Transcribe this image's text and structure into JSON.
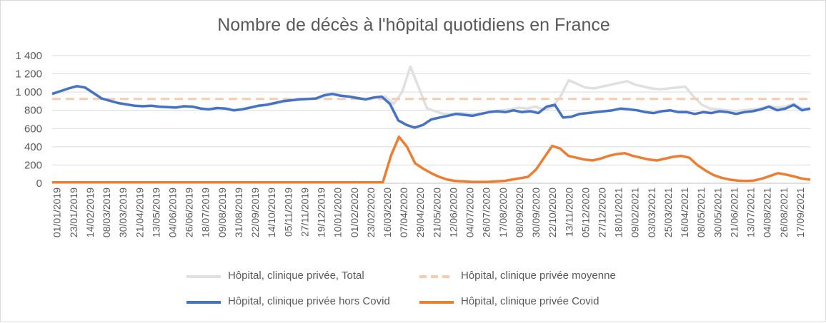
{
  "chart_data": {
    "type": "line",
    "title": "Nombre de décès à l'hôpital quotidiens en France",
    "xlabel": "",
    "ylabel": "",
    "ylim": [
      0,
      1400
    ],
    "y_ticks": [
      "0",
      "200",
      "400",
      "600",
      "800",
      "1 000",
      "1 200",
      "1 400"
    ],
    "x_tick_labels": [
      "01/01/2019",
      "23/01/2019",
      "14/02/2019",
      "08/03/2019",
      "30/03/2019",
      "21/04/2019",
      "13/05/2019",
      "04/06/2019",
      "26/06/2019",
      "18/07/2019",
      "09/08/2019",
      "31/08/2019",
      "22/09/2019",
      "14/10/2019",
      "05/11/2019",
      "27/11/2019",
      "19/12/2019",
      "10/01/2020",
      "01/02/2020",
      "23/02/2020",
      "16/03/2020",
      "07/04/2020",
      "29/04/2020",
      "21/05/2020",
      "12/06/2020",
      "04/07/2020",
      "26/07/2020",
      "17/08/2020",
      "08/09/2020",
      "30/09/2020",
      "22/10/2020",
      "13/11/2020",
      "05/12/2020",
      "27/12/2020",
      "18/01/2021",
      "09/02/2021",
      "03/03/2021",
      "25/03/2021",
      "16/04/2021",
      "08/05/2021",
      "30/05/2021",
      "21/06/2021",
      "13/07/2021",
      "04/08/2021",
      "26/08/2021",
      "17/09/2021"
    ],
    "grid": "horizontal",
    "legend_position": "bottom",
    "series": [
      {
        "name": "Hôpital, clinique privée, Total",
        "color": "#e0e0e0",
        "style": "solid",
        "values": [
          980,
          1010,
          1040,
          1065,
          1050,
          990,
          930,
          905,
          880,
          865,
          850,
          845,
          850,
          840,
          835,
          830,
          845,
          840,
          820,
          810,
          825,
          820,
          800,
          810,
          830,
          850,
          860,
          880,
          900,
          910,
          920,
          925,
          930,
          965,
          980,
          960,
          950,
          935,
          920,
          940,
          950,
          870,
          1000,
          1280,
          1050,
          820,
          790,
          760,
          760,
          770,
          760,
          760,
          770,
          790,
          800,
          810,
          830,
          820,
          840,
          810,
          830,
          950,
          1130,
          1090,
          1050,
          1040,
          1060,
          1080,
          1100,
          1120,
          1080,
          1060,
          1040,
          1030,
          1040,
          1050,
          1060,
          950,
          860,
          820,
          810,
          800,
          790,
          800,
          810,
          820,
          850,
          830,
          840,
          870,
          820,
          820
        ]
      },
      {
        "name": "Hôpital, clinique privée moyenne",
        "color": "#f8cbad",
        "style": "dashed",
        "values": [
          925,
          925
        ]
      },
      {
        "name": "Hôpital, clinique privée hors Covid",
        "color": "#4472c4",
        "style": "solid",
        "values": [
          980,
          1010,
          1040,
          1065,
          1050,
          990,
          930,
          905,
          880,
          865,
          850,
          845,
          850,
          840,
          835,
          830,
          845,
          840,
          820,
          810,
          825,
          820,
          800,
          810,
          830,
          850,
          860,
          880,
          900,
          910,
          920,
          925,
          930,
          965,
          980,
          960,
          950,
          935,
          920,
          940,
          950,
          870,
          690,
          640,
          610,
          640,
          700,
          720,
          740,
          760,
          750,
          740,
          760,
          780,
          790,
          780,
          800,
          780,
          790,
          770,
          840,
          860,
          720,
          730,
          760,
          770,
          780,
          790,
          800,
          820,
          810,
          800,
          780,
          770,
          790,
          800,
          780,
          780,
          760,
          780,
          770,
          790,
          780,
          760,
          780,
          790,
          810,
          840,
          800,
          820,
          860,
          800,
          820
        ]
      },
      {
        "name": "Hôpital, clinique privée Covid",
        "color": "#ed7d31",
        "style": "solid",
        "values": [
          10,
          10,
          10,
          10,
          10,
          10,
          10,
          10,
          10,
          10,
          10,
          10,
          10,
          10,
          10,
          10,
          10,
          10,
          10,
          10,
          10,
          10,
          10,
          10,
          10,
          10,
          10,
          10,
          10,
          10,
          10,
          10,
          10,
          10,
          10,
          10,
          10,
          10,
          10,
          10,
          10,
          10,
          300,
          510,
          400,
          220,
          160,
          110,
          70,
          40,
          25,
          20,
          15,
          15,
          15,
          20,
          25,
          40,
          55,
          70,
          150,
          280,
          410,
          380,
          300,
          280,
          260,
          250,
          270,
          300,
          320,
          330,
          300,
          280,
          260,
          250,
          270,
          290,
          300,
          280,
          200,
          140,
          90,
          60,
          40,
          30,
          25,
          30,
          50,
          80,
          110,
          95,
          75,
          50,
          40
        ]
      }
    ]
  }
}
